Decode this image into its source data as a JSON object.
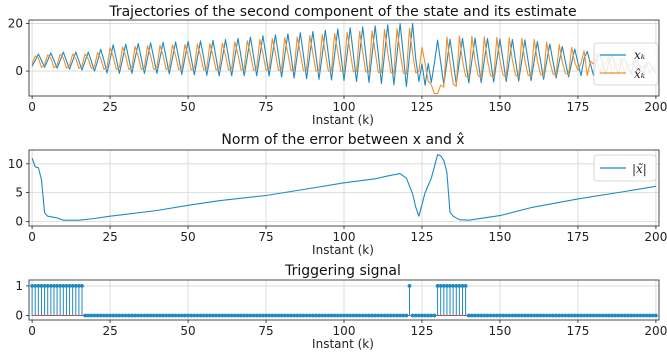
{
  "colors": {
    "blue": "#1f8ac0",
    "orange": "#f0902a",
    "red": "#d9463b",
    "grid": "#d5d5d5"
  },
  "chart_data": [
    {
      "type": "line",
      "title": "Trajectories of the second component of the state and its estimate",
      "xlabel": "Instant (k)",
      "ylabel": "",
      "xlim": [
        -1,
        201
      ],
      "ylim": [
        -10.5,
        21.5
      ],
      "xticks": [
        0,
        25,
        50,
        75,
        100,
        125,
        150,
        175,
        200
      ],
      "yticks": [
        0,
        20
      ],
      "legend_position": "right",
      "grid": true,
      "series": [
        {
          "name": "x_k",
          "legend_label": "xₖ",
          "color": "#1f8ac0",
          "profile": "blue"
        },
        {
          "name": "x̂_k",
          "legend_label": "x̂ₖ",
          "color": "#f0902a",
          "profile": "orange"
        }
      ],
      "period": 4,
      "x_start": 0,
      "x_end": 200,
      "envelope": {
        "k": [
          0,
          10,
          20,
          25,
          40,
          60,
          75,
          85,
          100,
          110,
          118,
          122,
          125,
          130,
          140,
          160,
          175,
          200
        ],
        "peak": [
          7,
          8,
          8,
          11,
          12,
          13,
          15,
          16,
          18,
          19,
          20,
          20,
          9,
          13,
          14,
          13,
          9,
          3
        ],
        "valley": [
          2,
          1,
          0,
          -1,
          -1,
          -2,
          -2,
          -3,
          -4,
          -5,
          -6,
          -7,
          -3,
          -6,
          -5,
          -4,
          -2,
          -1
        ]
      }
    },
    {
      "type": "line",
      "title": "Norm of the error between x and x̂",
      "xlabel": "Instant (k)",
      "ylabel": "",
      "xlim": [
        -1,
        201
      ],
      "ylim": [
        -0.8,
        12.4
      ],
      "xticks": [
        0,
        25,
        50,
        75,
        100,
        125,
        150,
        175,
        200
      ],
      "yticks": [
        0,
        5,
        10
      ],
      "legend_position": "top-right",
      "grid": true,
      "series": [
        {
          "name": "|x̃|",
          "legend_label": "|x̃|",
          "color": "#1f8ac0",
          "x": [
            0,
            1,
            2,
            3,
            4,
            5,
            8,
            10,
            15,
            20,
            25,
            40,
            50,
            60,
            75,
            90,
            100,
            110,
            115,
            118,
            120,
            122,
            123,
            124,
            126,
            128,
            129,
            130,
            131,
            132,
            133,
            134,
            135,
            137,
            140,
            150,
            160,
            175,
            190,
            200
          ],
          "y": [
            11.0,
            9.5,
            9.3,
            7.2,
            1.5,
            0.9,
            0.6,
            0.2,
            0.2,
            0.5,
            0.9,
            1.9,
            2.8,
            3.6,
            4.5,
            5.8,
            6.7,
            7.4,
            8.0,
            8.3,
            7.5,
            4.8,
            2.5,
            0.9,
            5.0,
            7.5,
            9.5,
            11.6,
            11.4,
            10.6,
            8.5,
            1.6,
            0.9,
            0.3,
            0.2,
            1.0,
            2.4,
            3.9,
            5.2,
            6.1
          ]
        }
      ]
    },
    {
      "type": "stem",
      "title": "Triggering signal",
      "xlabel": "Instant (k)",
      "ylabel": "",
      "xlim": [
        -1,
        201
      ],
      "ylim": [
        -0.15,
        1.2
      ],
      "xticks": [
        0,
        25,
        50,
        75,
        100,
        125,
        150,
        175,
        200
      ],
      "yticks": [
        0,
        1
      ],
      "grid": true,
      "series": [
        {
          "name": "trigger",
          "color": "#1f8ac0",
          "baseline_color": "#d9463b",
          "x_range": [
            0,
            200
          ],
          "ones": [
            0,
            1,
            2,
            3,
            4,
            5,
            6,
            7,
            8,
            9,
            10,
            11,
            12,
            13,
            14,
            15,
            16,
            121,
            130,
            131,
            132,
            133,
            134,
            135,
            136,
            137,
            138,
            139
          ]
        }
      ]
    }
  ]
}
